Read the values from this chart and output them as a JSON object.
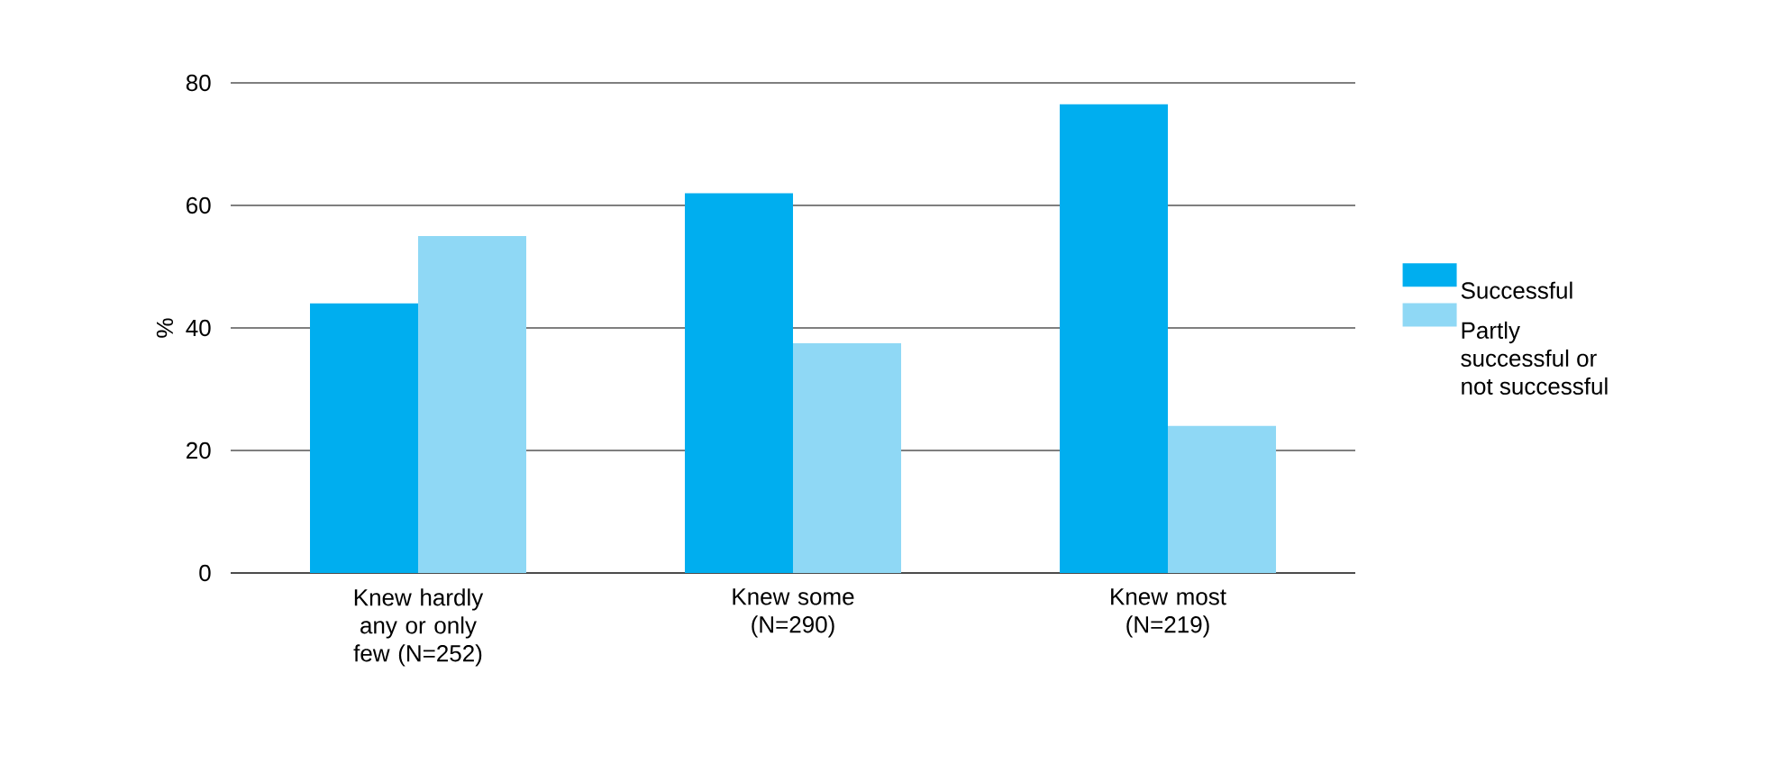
{
  "chart_data": {
    "type": "bar",
    "ylabel": "%",
    "categories": [
      "Knew hardly any or only few (N=252)",
      "Knew some (N=290)",
      "Knew most (N=219)"
    ],
    "series": [
      {
        "name": "Successful",
        "color": "#00aeef",
        "values": [
          44,
          62,
          76.5
        ]
      },
      {
        "name": "Partly successful or not successful",
        "color": "#8fd8f5",
        "values": [
          55,
          37.5,
          24
        ]
      }
    ],
    "ylim": [
      0,
      80
    ],
    "yticks": [
      0,
      20,
      40,
      60,
      80
    ],
    "grid": "y",
    "legend": "right"
  }
}
